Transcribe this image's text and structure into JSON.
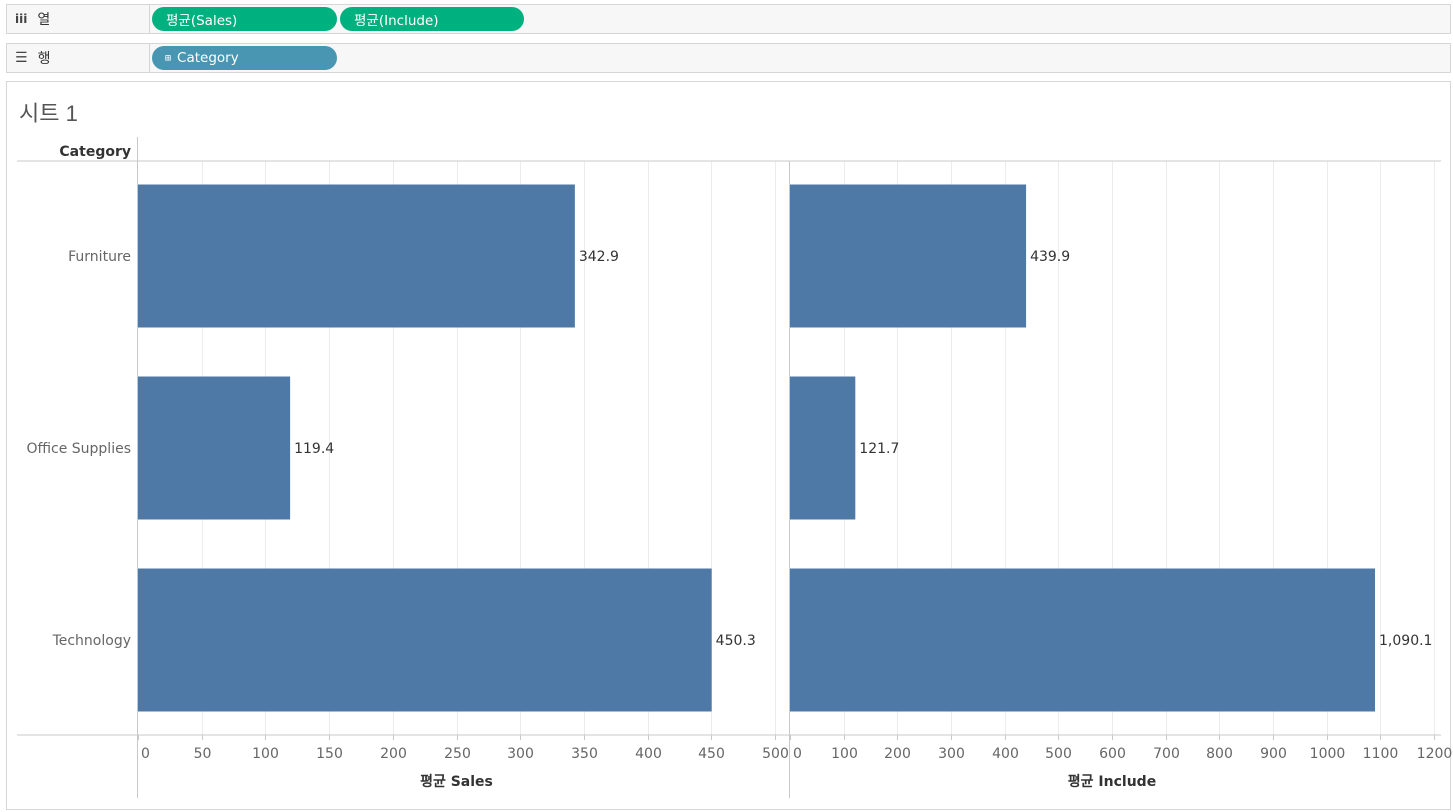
{
  "columns_shelf": {
    "label": "열",
    "icon": "columns-icon",
    "pills": [
      "평균(Sales)",
      "평균(Include)"
    ]
  },
  "rows_shelf": {
    "label": "행",
    "icon": "rows-icon",
    "pill": "Category",
    "pill_icon": "⊞"
  },
  "sheet": {
    "title": "시트 1"
  },
  "colors": {
    "bar": "#4e79a7",
    "pill_green": "#00b180",
    "pill_blue": "#4996b2"
  },
  "chart_data": {
    "type": "bar",
    "orientation": "horizontal",
    "header": "Category",
    "categories": [
      "Furniture",
      "Office Supplies",
      "Technology"
    ],
    "series": [
      {
        "name": "평균 Sales",
        "values": [
          342.9,
          119.4,
          450.3
        ],
        "labels": [
          "342.9",
          "119.4",
          "450.3"
        ],
        "xlim": [
          0,
          500
        ],
        "ticks": [
          0,
          50,
          100,
          150,
          200,
          250,
          300,
          350,
          400,
          450,
          500
        ],
        "xlabel": "평균 Sales"
      },
      {
        "name": "평균 Include",
        "values": [
          439.9,
          121.7,
          1090.1
        ],
        "labels": [
          "439.9",
          "121.7",
          "1,090.1"
        ],
        "xlim": [
          0,
          1200
        ],
        "ticks": [
          0,
          100,
          200,
          300,
          400,
          500,
          600,
          700,
          800,
          900,
          1000,
          1100,
          1200
        ],
        "xlabel": "평균 Include"
      }
    ],
    "grid": true
  }
}
